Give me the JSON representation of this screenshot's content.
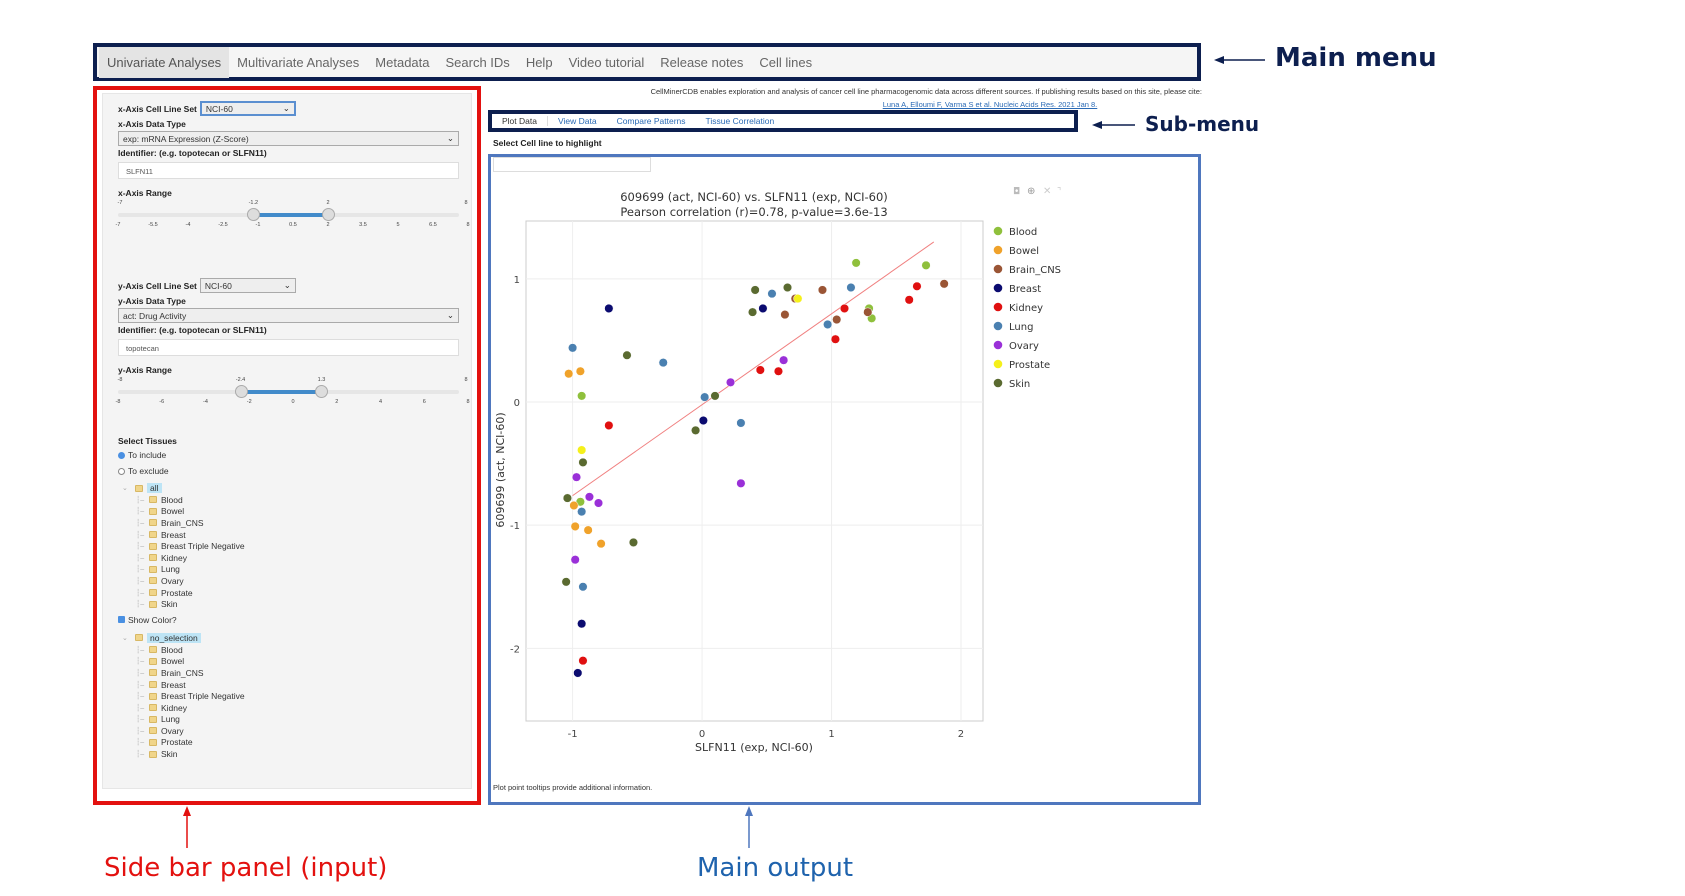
{
  "main_menu": {
    "tabs": [
      "Univariate Analyses",
      "Multivariate Analyses",
      "Metadata",
      "Search IDs",
      "Help",
      "Video tutorial",
      "Release notes",
      "Cell lines"
    ],
    "active": 0
  },
  "annotations": {
    "main_menu": "Main menu",
    "sub_menu": "Sub-menu",
    "side_bar": "Side bar panel (input)",
    "main_output": "Main output",
    "colors": {
      "main_menu": "#0d1f4f",
      "side_bar": "#e3110f",
      "main_output": "#4f77be",
      "main_output_text": "#1f63ad"
    }
  },
  "sidebar": {
    "x_cell_line_label": "x-Axis Cell Line Set",
    "x_cell_line_value": "NCI-60",
    "x_data_type_label": "x-Axis Data Type",
    "x_data_type_value": "exp: mRNA Expression (Z-Score)",
    "x_identifier_label": "Identifier: (e.g. topotecan or SLFN11)",
    "x_identifier_value": "SLFN11",
    "x_range_label": "x-Axis Range",
    "x_range": {
      "min": -7,
      "max": 8,
      "low": -1.2,
      "high": 2,
      "ticks": [
        "-7",
        "-5.5",
        "-4",
        "-2.5",
        "-1",
        "0.5",
        "2",
        "3.5",
        "5",
        "6.5",
        "8"
      ]
    },
    "y_cell_line_label": "y-Axis Cell Line Set",
    "y_cell_line_value": "NCI-60",
    "y_data_type_label": "y-Axis Data Type",
    "y_data_type_value": "act: Drug Activity",
    "y_identifier_label": "Identifier: (e.g. topotecan or SLFN11)",
    "y_identifier_value": "topotecan",
    "y_range_label": "y-Axis Range",
    "y_range": {
      "min": -8,
      "max": 8,
      "low": -2.4,
      "high": 1.3,
      "ticks": [
        "-8",
        "-6",
        "-4",
        "-2",
        "0",
        "2",
        "4",
        "6",
        "8"
      ]
    },
    "select_tissues_label": "Select Tissues",
    "radio_include": "To include",
    "radio_exclude": "To exclude",
    "include_selected": true,
    "tissue_tree": {
      "root": "all",
      "items": [
        "Blood",
        "Bowel",
        "Brain_CNS",
        "Breast",
        "Breast Triple Negative",
        "Kidney",
        "Lung",
        "Ovary",
        "Prostate",
        "Skin"
      ]
    },
    "show_color_label": "Show Color?",
    "show_color_checked": true,
    "color_tree": {
      "root": "no_selection",
      "items": [
        "Blood",
        "Bowel",
        "Brain_CNS",
        "Breast",
        "Breast Triple Negative",
        "Kidney",
        "Lung",
        "Ovary",
        "Prostate",
        "Skin"
      ]
    }
  },
  "main": {
    "citation": "CellMinerCDB enables exploration and analysis of cancer cell line pharmacogenomic data across different sources. If publishing results based on this site, please cite:",
    "citation_link": "Luna A, Elloumi F, Varma S et al. Nucleic Acids Res. 2021 Jan 8.",
    "sub_tabs": [
      "Plot Data",
      "View Data",
      "Compare Patterns",
      "Tissue Correlation"
    ],
    "active_sub_tab": 0,
    "highlight_label": "Select Cell line to highlight",
    "highlight_value": "",
    "footnote": "Plot point tooltips provide additional information.",
    "toolbar_icons": [
      "camera-icon",
      "zoom-icon",
      "autoscale-icon",
      "reset-icon"
    ]
  },
  "chart_data": {
    "type": "scatter",
    "title": "609699 (act, NCI-60) vs. SLFN11 (exp, NCI-60)",
    "subtitle": "Pearson correlation (r)=0.78, p-value=3.6e-13",
    "xlabel": "SLFN11 (exp, NCI-60)",
    "ylabel": "609699 (act, NCI-60)",
    "xlim": [
      -1.36,
      2.17
    ],
    "ylim": [
      -2.59,
      1.47
    ],
    "xticks": [
      -1,
      0,
      1,
      2
    ],
    "yticks": [
      -2,
      -1,
      0,
      1
    ],
    "grid": true,
    "legend": "right",
    "fit_line": {
      "x": [
        -1,
        1.79
      ],
      "y": [
        -0.76,
        1.3
      ],
      "color": "#f08080"
    },
    "series": [
      {
        "name": "Blood",
        "color": "#8fc03c",
        "points": [
          [
            1.19,
            1.13
          ],
          [
            1.73,
            1.11
          ],
          [
            1.29,
            0.76
          ],
          [
            1.31,
            0.68
          ],
          [
            -0.93,
            0.05
          ],
          [
            -0.94,
            -0.81
          ]
        ]
      },
      {
        "name": "Bowel",
        "color": "#f0a22a",
        "points": [
          [
            -1.03,
            0.23
          ],
          [
            -0.94,
            0.25
          ],
          [
            -0.98,
            -1.01
          ],
          [
            -0.88,
            -1.04
          ],
          [
            -0.78,
            -1.15
          ],
          [
            -0.99,
            -0.84
          ]
        ]
      },
      {
        "name": "Brain_CNS",
        "color": "#9a5535",
        "points": [
          [
            0.93,
            0.91
          ],
          [
            0.64,
            0.71
          ],
          [
            0.72,
            0.84
          ],
          [
            1.04,
            0.67
          ],
          [
            1.28,
            0.73
          ],
          [
            1.87,
            0.96
          ]
        ]
      },
      {
        "name": "Breast",
        "color": "#0b0b70",
        "points": [
          [
            -0.72,
            0.76
          ],
          [
            0.47,
            0.76
          ],
          [
            0.01,
            -0.15
          ],
          [
            -0.93,
            -1.8
          ],
          [
            -0.96,
            -2.2
          ]
        ]
      },
      {
        "name": "Kidney",
        "color": "#e01010",
        "points": [
          [
            -0.72,
            -0.19
          ],
          [
            0.45,
            0.26
          ],
          [
            0.59,
            0.25
          ],
          [
            1.03,
            0.51
          ],
          [
            1.1,
            0.76
          ],
          [
            1.66,
            0.94
          ],
          [
            1.6,
            0.83
          ],
          [
            -0.92,
            -2.1
          ]
        ]
      },
      {
        "name": "Lung",
        "color": "#4a80b0",
        "points": [
          [
            -1.0,
            0.44
          ],
          [
            -0.3,
            0.32
          ],
          [
            0.02,
            0.04
          ],
          [
            0.3,
            -0.17
          ],
          [
            0.54,
            0.88
          ],
          [
            0.97,
            0.63
          ],
          [
            1.15,
            0.93
          ],
          [
            -0.93,
            -0.89
          ],
          [
            -0.92,
            -1.5
          ]
        ]
      },
      {
        "name": "Ovary",
        "color": "#9a30d8",
        "points": [
          [
            0.22,
            0.16
          ],
          [
            0.63,
            0.34
          ],
          [
            0.3,
            -0.66
          ],
          [
            -0.97,
            -0.61
          ],
          [
            -0.87,
            -0.77
          ],
          [
            -0.8,
            -0.82
          ],
          [
            -0.98,
            -1.28
          ]
        ]
      },
      {
        "name": "Prostate",
        "color": "#f5f01a",
        "points": [
          [
            -0.93,
            -0.39
          ],
          [
            0.74,
            0.84
          ]
        ]
      },
      {
        "name": "Skin",
        "color": "#5a6a30",
        "points": [
          [
            0.41,
            0.91
          ],
          [
            0.66,
            0.93
          ],
          [
            0.39,
            0.73
          ],
          [
            -0.58,
            0.38
          ],
          [
            0.1,
            0.05
          ],
          [
            -0.05,
            -0.23
          ],
          [
            -0.92,
            -0.49
          ],
          [
            -1.04,
            -0.78
          ],
          [
            -0.53,
            -1.14
          ],
          [
            -1.05,
            -1.46
          ]
        ]
      }
    ]
  }
}
